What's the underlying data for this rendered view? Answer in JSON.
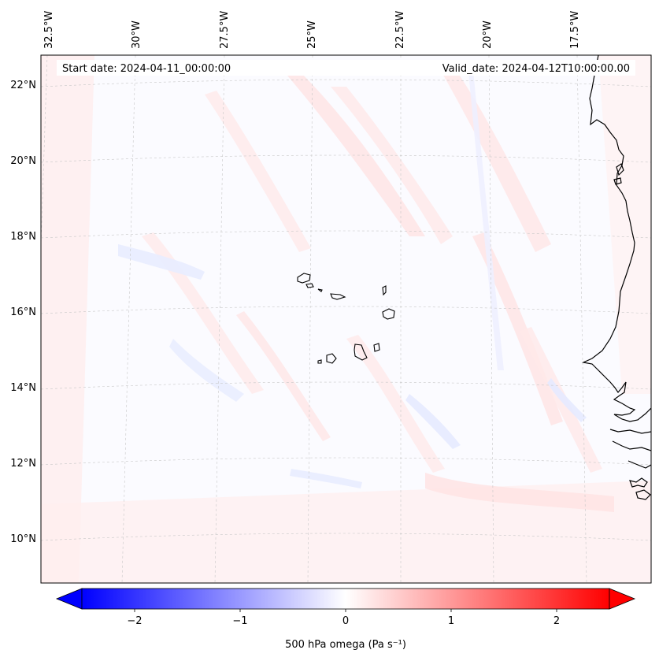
{
  "header": {
    "start_date": "Start date: 2024-04-11_00:00:00",
    "valid_date": "Valid_date: 2024-04-12T10:00:00.00"
  },
  "map": {
    "lon_labels": [
      "32.5°W",
      "30°W",
      "27.5°W",
      "25°W",
      "22.5°W",
      "20°W",
      "17.5°W"
    ],
    "lat_labels": [
      "22°N",
      "20°N",
      "18°N",
      "16°N",
      "14°N",
      "12°N",
      "10°N"
    ],
    "coastline_color": "#000000",
    "gridline_color": "#c8c8c8"
  },
  "colorbar": {
    "ticks": [
      "−2",
      "−1",
      "0",
      "1",
      "2"
    ],
    "label": "500 hPa omega (Pa s⁻¹)",
    "min_color": "#0000ff",
    "mid_color": "#ffffff",
    "max_color": "#ff0000"
  },
  "field": {
    "name": "500 hPa omega",
    "background": "#fbfbff",
    "positive_patch_color": "#ffe6e6",
    "negative_patch_color": "#e6eaff"
  }
}
